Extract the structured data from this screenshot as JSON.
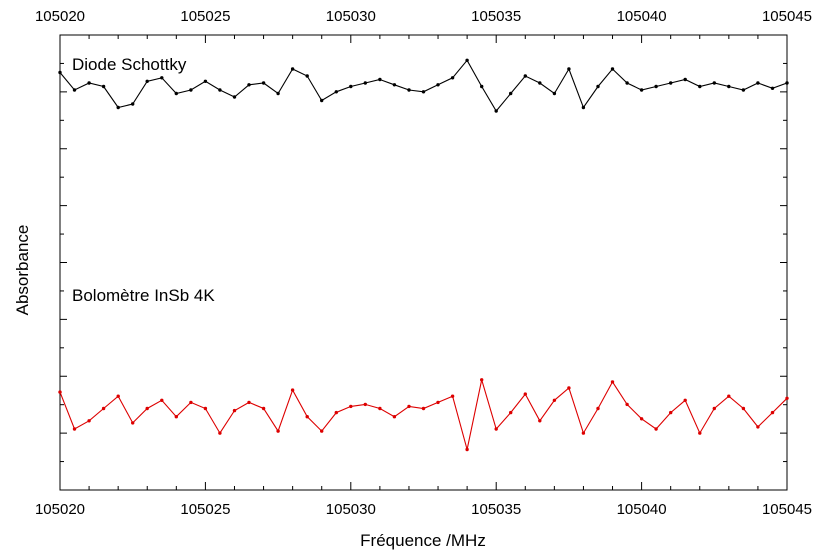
{
  "chart_data": {
    "type": "line",
    "xlabel": "Fréquence /MHz",
    "ylabel": "Absorbance",
    "xlim": [
      105020,
      105045
    ],
    "ylim": [
      0,
      1
    ],
    "grid": false,
    "x_ticks": [
      105020,
      105025,
      105030,
      105035,
      105040,
      105045
    ],
    "top_axis_labels": true,
    "y_ticklabels_shown": false,
    "series": [
      {
        "name": "Diode Schottky",
        "color": "#000000",
        "x": [
          105020.0,
          105020.5,
          105021.0,
          105021.5,
          105022.0,
          105022.5,
          105023.0,
          105023.5,
          105024.0,
          105024.5,
          105025.0,
          105025.5,
          105026.0,
          105026.5,
          105027.0,
          105027.5,
          105028.0,
          105028.5,
          105029.0,
          105029.5,
          105030.0,
          105030.5,
          105031.0,
          105031.5,
          105032.0,
          105032.5,
          105033.0,
          105033.5,
          105034.0,
          105034.5,
          105035.0,
          105035.5,
          105036.0,
          105036.5,
          105037.0,
          105037.5,
          105038.0,
          105038.5,
          105039.0,
          105039.5,
          105040.0,
          105040.5,
          105041.0,
          105041.5,
          105042.0,
          105042.5,
          105043.0,
          105043.5,
          105044.0,
          105044.5,
          105045.0
        ],
        "values": [
          0.9,
          0.8,
          0.84,
          0.82,
          0.7,
          0.72,
          0.85,
          0.87,
          0.78,
          0.8,
          0.85,
          0.8,
          0.76,
          0.83,
          0.84,
          0.78,
          0.92,
          0.88,
          0.74,
          0.79,
          0.82,
          0.84,
          0.86,
          0.83,
          0.8,
          0.79,
          0.83,
          0.87,
          0.97,
          0.82,
          0.68,
          0.78,
          0.88,
          0.84,
          0.78,
          0.92,
          0.7,
          0.82,
          0.92,
          0.84,
          0.8,
          0.82,
          0.84,
          0.86,
          0.82,
          0.84,
          0.82,
          0.8,
          0.84,
          0.81,
          0.84
        ]
      },
      {
        "name": "Bolomètre InSb 4K",
        "color": "#dd0000",
        "x": [
          105020.0,
          105020.5,
          105021.0,
          105021.5,
          105022.0,
          105022.5,
          105023.0,
          105023.5,
          105024.0,
          105024.5,
          105025.0,
          105025.5,
          105026.0,
          105026.5,
          105027.0,
          105027.5,
          105028.0,
          105028.5,
          105029.0,
          105029.5,
          105030.0,
          105030.5,
          105031.0,
          105031.5,
          105032.0,
          105032.5,
          105033.0,
          105033.5,
          105034.0,
          105034.5,
          105035.0,
          105035.5,
          105036.0,
          105036.5,
          105037.0,
          105037.5,
          105038.0,
          105038.5,
          105039.0,
          105039.5,
          105040.0,
          105040.5,
          105041.0,
          105041.5,
          105042.0,
          105042.5,
          105043.0,
          105043.5,
          105044.0,
          105044.5,
          105045.0
        ],
        "values": [
          0.38,
          0.2,
          0.24,
          0.3,
          0.36,
          0.23,
          0.3,
          0.34,
          0.26,
          0.33,
          0.3,
          0.18,
          0.29,
          0.33,
          0.3,
          0.19,
          0.39,
          0.26,
          0.19,
          0.28,
          0.31,
          0.32,
          0.3,
          0.26,
          0.31,
          0.3,
          0.33,
          0.36,
          0.1,
          0.44,
          0.2,
          0.28,
          0.37,
          0.24,
          0.34,
          0.4,
          0.18,
          0.3,
          0.43,
          0.32,
          0.25,
          0.2,
          0.28,
          0.34,
          0.18,
          0.3,
          0.36,
          0.3,
          0.21,
          0.28,
          0.35
        ]
      }
    ]
  }
}
